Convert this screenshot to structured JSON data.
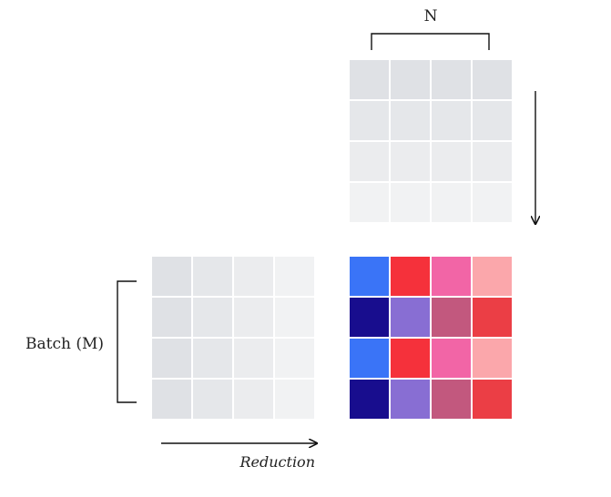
{
  "labels": {
    "n": "N",
    "batch": "Batch (M)",
    "reduction": "Reduction"
  },
  "grids": {
    "top": {
      "rows": 4,
      "cols": 4,
      "colors": [
        [
          "#dfe1e5",
          "#dfe1e5",
          "#dfe1e5",
          "#dfe1e5"
        ],
        [
          "#e5e7ea",
          "#e5e7ea",
          "#e5e7ea",
          "#e5e7ea"
        ],
        [
          "#ebecee",
          "#ebecee",
          "#ebecee",
          "#ebecee"
        ],
        [
          "#f1f2f3",
          "#f1f2f3",
          "#f1f2f3",
          "#f1f2f3"
        ]
      ]
    },
    "left": {
      "rows": 4,
      "cols": 4,
      "colors": [
        [
          "#dfe1e5",
          "#e5e7ea",
          "#ebecee",
          "#f1f2f3"
        ],
        [
          "#dfe1e5",
          "#e5e7ea",
          "#ebecee",
          "#f1f2f3"
        ],
        [
          "#dfe1e5",
          "#e5e7ea",
          "#ebecee",
          "#f1f2f3"
        ],
        [
          "#dfe1e5",
          "#e5e7ea",
          "#ebecee",
          "#f1f2f3"
        ]
      ]
    },
    "result": {
      "rows": 4,
      "cols": 4,
      "colors": [
        [
          "#3a74f7",
          "#f5313b",
          "#f265a6",
          "#fba7ab"
        ],
        [
          "#180d8e",
          "#886ed3",
          "#c2587e",
          "#eb3e45"
        ],
        [
          "#3a74f7",
          "#f5313b",
          "#f265a6",
          "#fba7ab"
        ],
        [
          "#180d8e",
          "#886ed3",
          "#c2587e",
          "#eb3e45"
        ]
      ]
    }
  }
}
